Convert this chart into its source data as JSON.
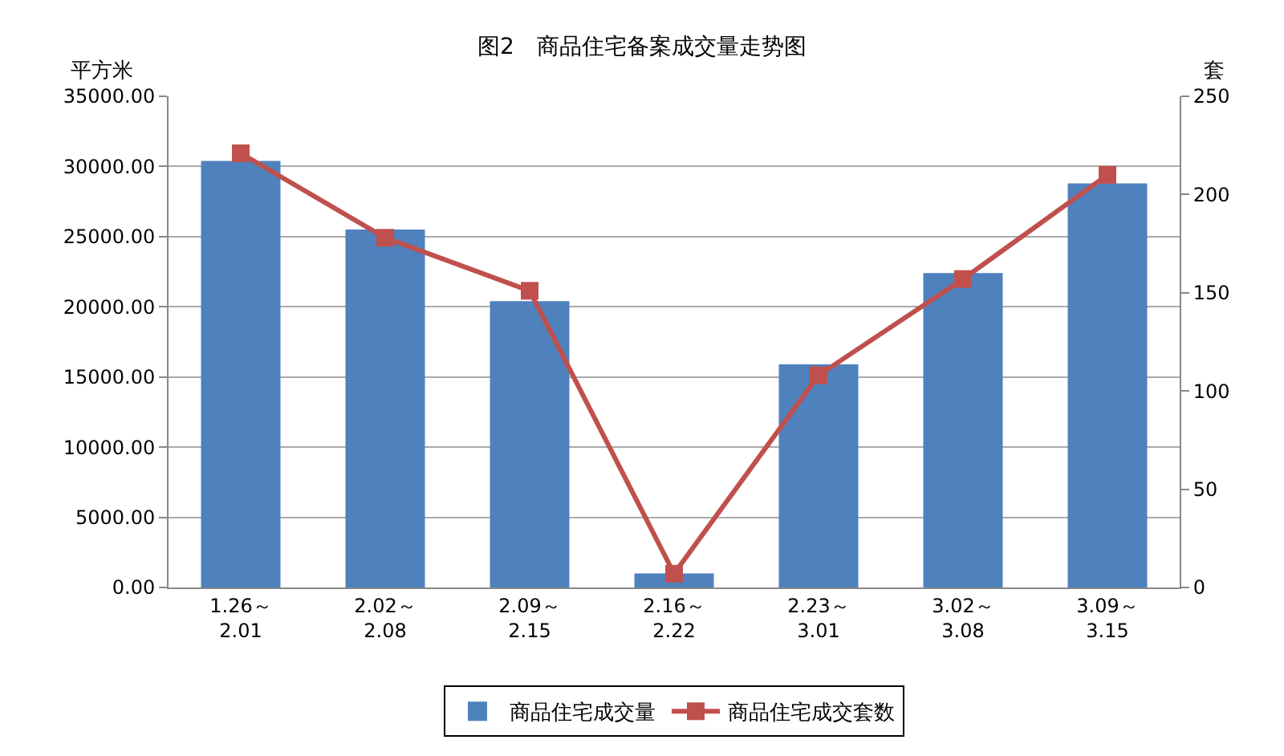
{
  "chart_data": {
    "type": "bar",
    "title": "图2　商品住宅备案成交量走势图",
    "ylabel": "平方米",
    "y2label": "套",
    "categories": [
      "1.26～\n2.01",
      "2.02～\n2.08",
      "2.09～\n2.15",
      "2.16～\n2.22",
      "2.23～\n3.01",
      "3.02～\n3.08",
      "3.09～\n3.15"
    ],
    "series": [
      {
        "name": "商品住宅成交量",
        "color": "#4f81bd",
        "values": [
          30400,
          25500,
          20400,
          1000,
          15900,
          22400,
          28800
        ]
      },
      {
        "name": "商品住宅成交套数",
        "type": "line",
        "axis": "y2",
        "color": "#c0504d",
        "marker": "square",
        "values": [
          221,
          178,
          151,
          7,
          108,
          157,
          210
        ]
      }
    ],
    "ylim": [
      0,
      35000
    ],
    "yticks": [
      {
        "value": 0,
        "label": "0.00"
      },
      {
        "value": 5000,
        "label": "5000.00"
      },
      {
        "value": 10000,
        "label": "10000.00"
      },
      {
        "value": 15000,
        "label": "15000.00"
      },
      {
        "value": 20000,
        "label": "20000.00"
      },
      {
        "value": 25000,
        "label": "25000.00"
      },
      {
        "value": 30000,
        "label": "30000.00"
      },
      {
        "value": 35000,
        "label": "35000.00"
      }
    ],
    "y2lim": [
      0,
      250
    ],
    "y2ticks": [
      0,
      50,
      100,
      150,
      200,
      250
    ],
    "grid": "y",
    "legend": "bottom"
  }
}
